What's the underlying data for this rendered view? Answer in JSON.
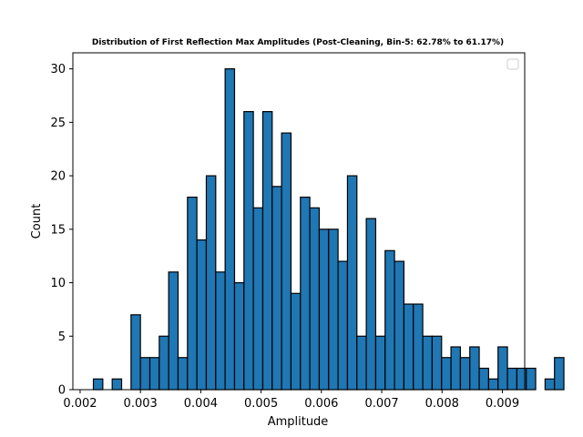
{
  "chart_data": {
    "type": "bar",
    "title": "Distribution of First Reflection Max Amplitudes (Post-Cleaning, Bin-5: 62.78% to 61.17%)",
    "xlabel": "Amplitude",
    "ylabel": "Count",
    "xlim": [
      0.00188,
      0.00937
    ],
    "ylim": [
      0,
      31.5
    ],
    "xticks": [
      0.002,
      0.003,
      0.004,
      0.005,
      0.006,
      0.007,
      0.008,
      0.009
    ],
    "xtick_labels": [
      "0.002",
      "0.003",
      "0.004",
      "0.005",
      "0.006",
      "0.007",
      "0.008",
      "0.009"
    ],
    "yticks": [
      0,
      5,
      10,
      15,
      20,
      25,
      30
    ],
    "ytick_labels": [
      "0",
      "5",
      "10",
      "15",
      "20",
      "25",
      "30"
    ],
    "bin_start": 0.00222,
    "bin_width": 0.000156,
    "values": [
      1,
      0,
      1,
      0,
      7,
      3,
      3,
      5,
      11,
      3,
      18,
      14,
      20,
      11,
      30,
      10,
      26,
      17,
      26,
      19,
      24,
      9,
      18,
      17,
      15,
      15,
      12,
      20,
      5,
      16,
      5,
      13,
      12,
      8,
      8,
      5,
      5,
      3,
      4,
      3,
      4,
      2,
      1,
      4,
      2,
      2,
      2,
      0,
      1,
      3
    ],
    "grid": false,
    "legend": "upper-right (empty)",
    "bar_color": "#1f77b4",
    "edge_color": "#000000"
  }
}
